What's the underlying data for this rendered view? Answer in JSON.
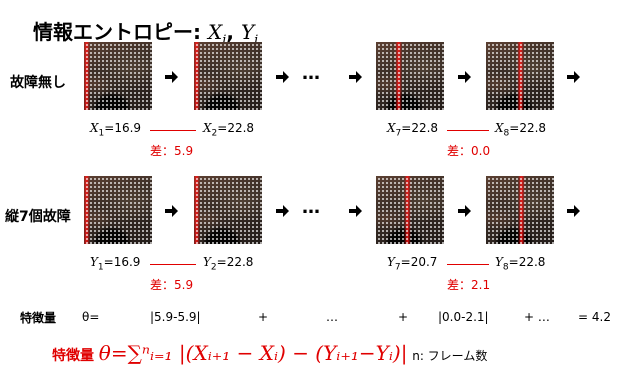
{
  "title": {
    "main": "情報エントロピー",
    "sep": ":",
    "var1": "X",
    "sub1": "i",
    "comma": ",",
    "var2": "Y",
    "sub2": "i"
  },
  "rows": [
    {
      "label": "故障無し",
      "values": [
        {
          "var": "X",
          "sub": "1",
          "eq": "=16.9"
        },
        {
          "var": "X",
          "sub": "2",
          "eq": "=22.8"
        },
        {
          "var": "X",
          "sub": "7",
          "eq": "=22.8"
        },
        {
          "var": "X",
          "sub": "8",
          "eq": "=22.8"
        }
      ],
      "diffs": [
        "差：5.9",
        "差：0.0"
      ]
    },
    {
      "label": "縦7個故障",
      "values": [
        {
          "var": "Y",
          "sub": "1",
          "eq": "=16.9"
        },
        {
          "var": "Y",
          "sub": "2",
          "eq": "=22.8"
        },
        {
          "var": "Y",
          "sub": "7",
          "eq": "=20.7"
        },
        {
          "var": "Y",
          "sub": "8",
          "eq": "=22.8"
        }
      ],
      "diffs": [
        "差：5.9",
        "差：2.1"
      ]
    }
  ],
  "ellipsis": "…",
  "feature_line": {
    "label": "特徴量",
    "theta": "θ=",
    "term1": "|5.9-5.9|",
    "plus": "+",
    "dots": "…",
    "term2": "|0.0-2.1|",
    "tail": "+ …",
    "result": "= 4.2"
  },
  "formula": {
    "label": "特徴量",
    "expr": "θ=∑ⁿᵢ₌₁ |(Xᵢ₊₁ − Xᵢ) − (Yᵢ₊₁−Yᵢ)|",
    "note": "n: フレーム数"
  },
  "colors": {
    "accent": "#e00000"
  }
}
